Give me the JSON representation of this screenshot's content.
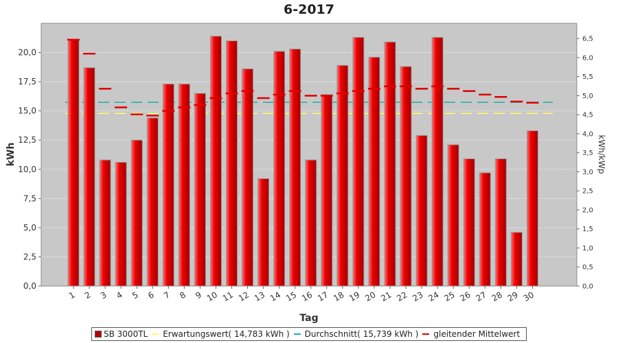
{
  "chart_data": {
    "type": "bar",
    "title": "6-2017",
    "xlabel": "Tag",
    "ylabel": "kWh",
    "ylabel_right": "kWh/kWp",
    "ylim": [
      0,
      22.5
    ],
    "ylim_right": [
      0,
      6.9
    ],
    "yticks": [
      "0,0",
      "2,5",
      "5,0",
      "7,5",
      "10,0",
      "12,5",
      "15,0",
      "17,5",
      "20,0"
    ],
    "yticks_right": [
      "0,0",
      "0,5",
      "1,0",
      "1,5",
      "2,0",
      "2,5",
      "3,0",
      "3,5",
      "4,0",
      "4,5",
      "5,0",
      "5,5",
      "6,0",
      "6,5"
    ],
    "categories": [
      "1",
      "2",
      "3",
      "4",
      "5",
      "6",
      "7",
      "8",
      "9",
      "10",
      "11",
      "12",
      "13",
      "14",
      "15",
      "16",
      "17",
      "18",
      "19",
      "20",
      "21",
      "22",
      "23",
      "24",
      "25",
      "26",
      "27",
      "28",
      "29",
      "30"
    ],
    "series": [
      {
        "name": "SB 3000TL",
        "color": "#dd0000",
        "values": [
          21.1,
          18.7,
          10.8,
          10.6,
          12.5,
          14.4,
          17.3,
          17.3,
          16.5,
          21.4,
          21.0,
          18.6,
          9.2,
          20.1,
          20.3,
          10.8,
          16.4,
          18.9,
          21.3,
          19.6,
          20.9,
          18.8,
          12.9,
          21.3,
          12.1,
          10.9,
          9.7,
          10.9,
          4.6,
          13.3
        ]
      },
      {
        "name": "gleitender Mittelwert",
        "color": "#dd0000",
        "values": [
          21.1,
          19.9,
          16.9,
          15.3,
          14.7,
          14.6,
          15.0,
          15.3,
          15.5,
          16.1,
          16.5,
          16.7,
          16.1,
          16.4,
          16.7,
          16.3,
          16.3,
          16.5,
          16.7,
          16.9,
          17.1,
          17.1,
          16.9,
          17.1,
          16.9,
          16.7,
          16.4,
          16.2,
          15.8,
          15.7
        ]
      }
    ],
    "reference_lines": [
      {
        "name": "Erwartungswert",
        "value": 14.783,
        "color": "#ffff66"
      },
      {
        "name": "Durchschnitt",
        "value": 15.739,
        "color": "#22aaaa"
      }
    ],
    "grid": true,
    "legend_position": "bottom"
  },
  "legend": {
    "items": [
      {
        "label": "SB 3000TL",
        "color": "#bb0000",
        "kind": "box"
      },
      {
        "label": "Erwartungswert( 14,783 kWh )",
        "color": "#ffff66",
        "kind": "line"
      },
      {
        "label": "Durchschnitt( 15,739 kWh )",
        "color": "#22aaaa",
        "kind": "line"
      },
      {
        "label": "gleitender Mittelwert",
        "color": "#dd0000",
        "kind": "line"
      }
    ]
  }
}
